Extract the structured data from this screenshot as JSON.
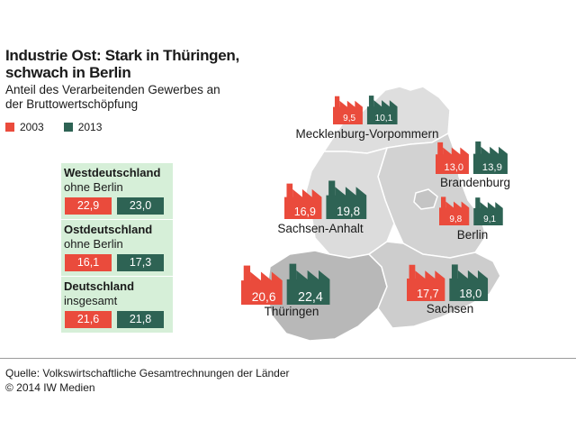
{
  "header": {
    "title": "Industrie Ost: Stark in Thüringen, schwach in Berlin",
    "subtitle": "Anteil des Verarbeitenden Gewerbes an der Bruttowertschöpfung"
  },
  "colors": {
    "y2003": "#ea4b3c",
    "y2013": "#2e6354",
    "panel": "#d6efd8",
    "map_light": "#dcdcdc",
    "map_dark": "#b9b9b9"
  },
  "legend": {
    "y2003": "2003",
    "y2013": "2013"
  },
  "panels": [
    {
      "heading": "Westdeutschland",
      "sub": "ohne Berlin",
      "v2003": "22,9",
      "v2013": "23,0"
    },
    {
      "heading": "Ostdeutschland",
      "sub": "ohne Berlin",
      "v2003": "16,1",
      "v2013": "17,3"
    },
    {
      "heading": "Deutschland",
      "sub": "insgesamt",
      "v2003": "21,6",
      "v2013": "21,8"
    }
  ],
  "chart_data": {
    "type": "bar",
    "unit": "",
    "series": [
      {
        "name": "2003",
        "values": [
          9.5,
          13.0,
          16.9,
          9.8,
          20.6,
          17.7
        ]
      },
      {
        "name": "2013",
        "values": [
          10.1,
          13.9,
          19.8,
          9.1,
          22.4,
          18.0
        ]
      }
    ],
    "categories": [
      "Mecklenburg-Vorpommern",
      "Brandenburg",
      "Sachsen-Anhalt",
      "Berlin",
      "Thüringen",
      "Sachsen"
    ],
    "labels_2003": [
      "9,5",
      "13,0",
      "16,9",
      "9,8",
      "20,6",
      "17,7"
    ],
    "labels_2013": [
      "10,1",
      "13,9",
      "19,8",
      "9,1",
      "22,4",
      "18,0"
    ]
  },
  "footer": {
    "source": "Quelle: Volkswirtschaftliche Gesamtrechnungen der Länder",
    "copyright": "© 2014 IW Medien"
  }
}
